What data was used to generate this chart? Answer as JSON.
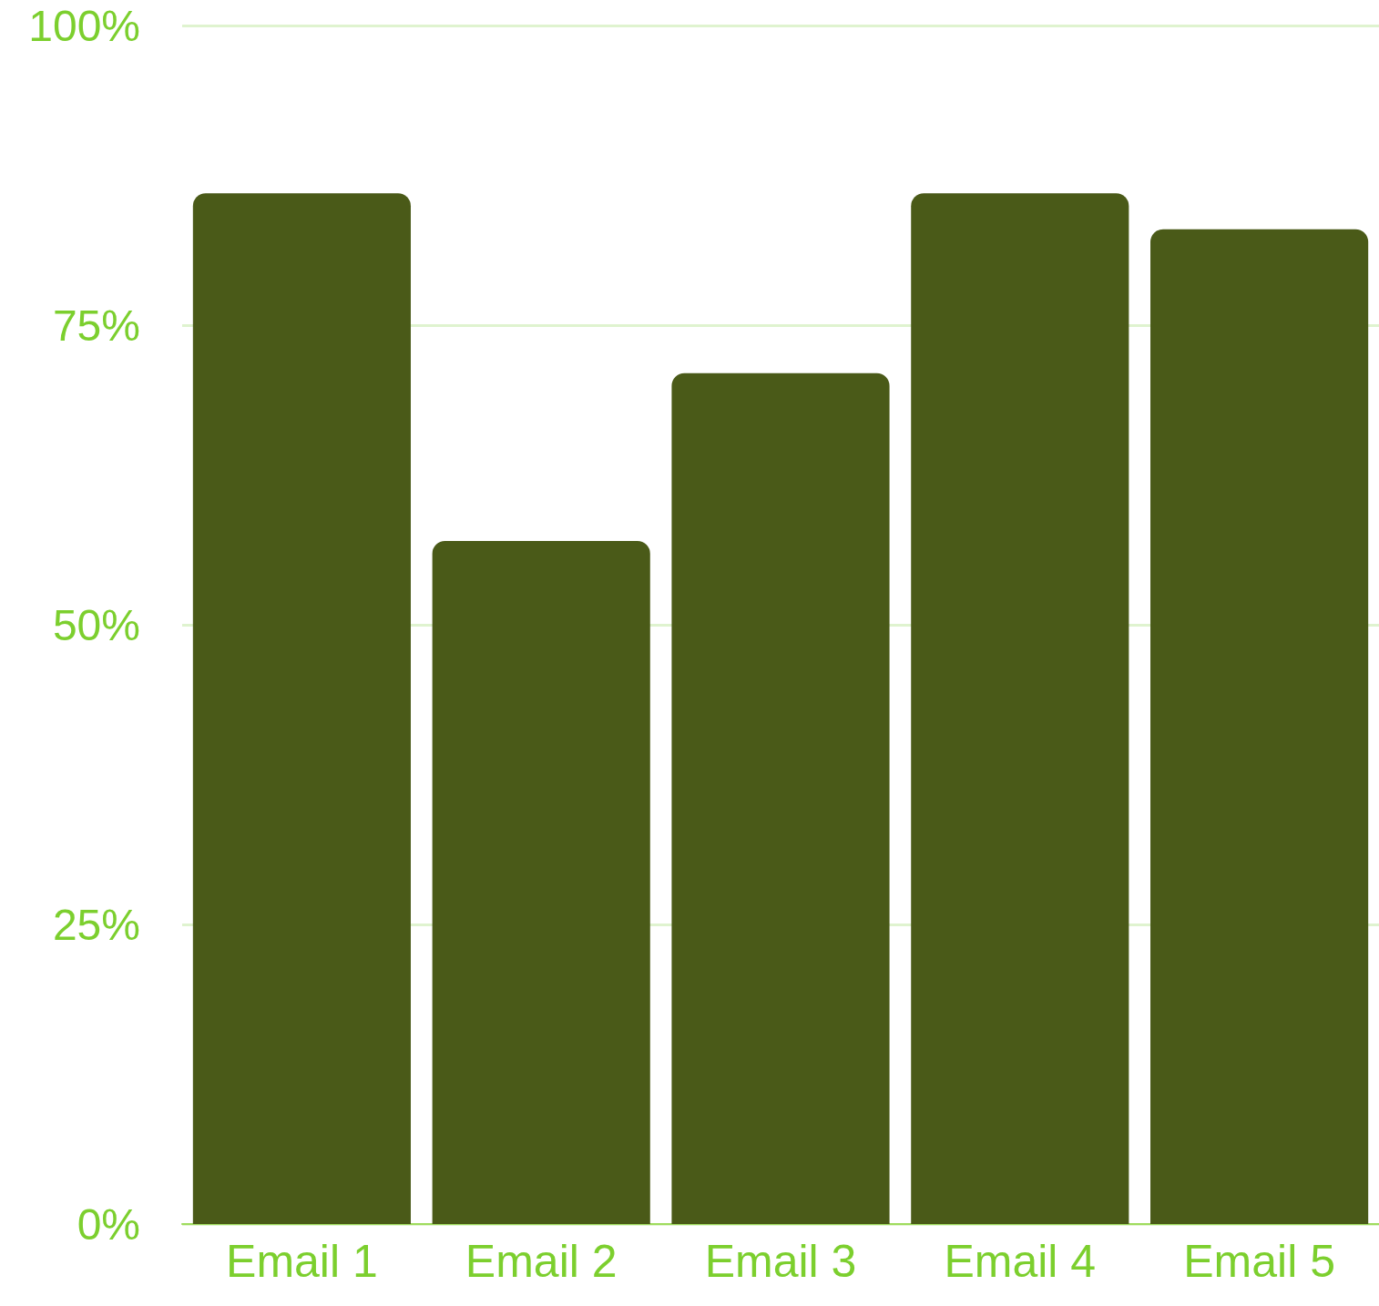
{
  "chart_data": {
    "type": "bar",
    "categories": [
      "Email 1",
      "Email 2",
      "Email 3",
      "Email 4",
      "Email 5"
    ],
    "values": [
      86,
      57,
      71,
      86,
      83
    ],
    "color": "#4a5a18",
    "ylim": [
      0,
      100
    ],
    "yticks": [
      {
        "value": 0,
        "label": "0%"
      },
      {
        "value": 25,
        "label": "25%"
      },
      {
        "value": 50,
        "label": "50%"
      },
      {
        "value": 75,
        "label": "75%"
      },
      {
        "value": 100,
        "label": "100%"
      }
    ],
    "grid": "y"
  }
}
